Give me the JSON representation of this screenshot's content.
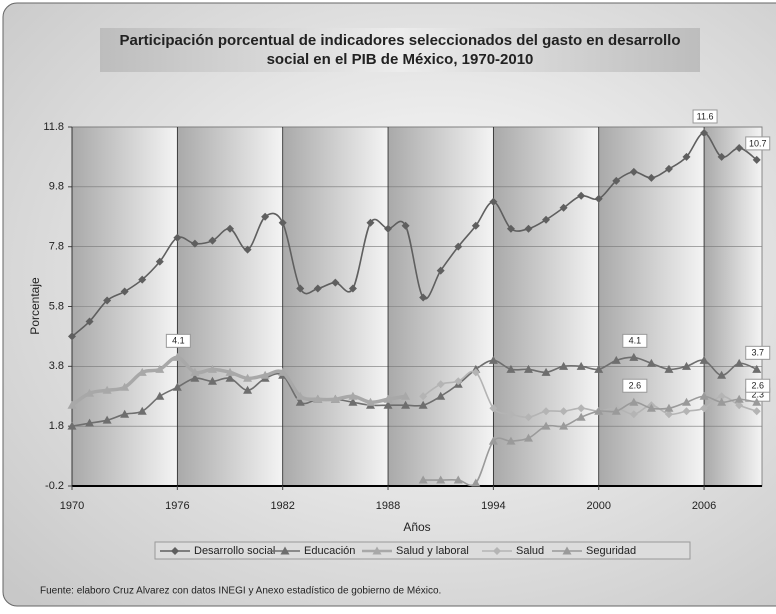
{
  "chart_data": {
    "type": "line",
    "title": "Participación porcentual de indicadores seleccionados del gasto en desarrollo",
    "subtitle": "social en el PIB de México, 1970-2010",
    "xlabel": "Años",
    "ylabel": "Porcentaje",
    "source": "Fuente: elaboro Cruz Alvarez con datos INEGI y Anexo estadístico de gobierno de México.",
    "x": [
      1970,
      1971,
      1972,
      1973,
      1974,
      1975,
      1976,
      1977,
      1978,
      1979,
      1980,
      1981,
      1982,
      1983,
      1984,
      1985,
      1986,
      1987,
      1988,
      1989,
      1990,
      1991,
      1992,
      1993,
      1994,
      1995,
      1996,
      1997,
      1998,
      1999,
      2000,
      2001,
      2002,
      2003,
      2004,
      2005,
      2006,
      2007,
      2008,
      2009
    ],
    "xlim": [
      1970,
      2009.3
    ],
    "xticks": [
      1970,
      1976,
      1982,
      1988,
      1994,
      2000,
      2006
    ],
    "ylim": [
      -0.2,
      11.8
    ],
    "yticks": [
      -0.2,
      1.8,
      3.8,
      5.8,
      7.8,
      9.8,
      11.8
    ],
    "grid": true,
    "legend": "bottom",
    "series": [
      {
        "name": "Desarrollo social",
        "color": "#5f5f5f",
        "marker": "diamond",
        "width": 1.6,
        "labeled": [
          36,
          39
        ],
        "values": [
          4.8,
          5.3,
          6.0,
          6.3,
          6.7,
          7.3,
          8.1,
          7.9,
          8.0,
          8.4,
          7.7,
          8.8,
          8.6,
          6.4,
          6.4,
          6.6,
          6.4,
          8.6,
          8.4,
          8.5,
          6.1,
          7.0,
          7.8,
          8.5,
          9.3,
          8.4,
          8.4,
          8.7,
          9.1,
          9.5,
          9.4,
          10.0,
          10.3,
          10.1,
          10.4,
          10.8,
          11.6,
          10.8,
          11.1,
          10.7
        ]
      },
      {
        "name": "Educación",
        "color": "#6e6e6e",
        "marker": "triangle",
        "width": 1.6,
        "labeled": [
          32,
          39
        ],
        "values": [
          1.8,
          1.9,
          2.0,
          2.2,
          2.3,
          2.8,
          3.1,
          3.4,
          3.3,
          3.4,
          3.0,
          3.4,
          3.5,
          2.6,
          2.7,
          2.7,
          2.6,
          2.5,
          2.5,
          2.5,
          2.5,
          2.8,
          3.2,
          3.7,
          4.0,
          3.7,
          3.7,
          3.6,
          3.8,
          3.8,
          3.7,
          4.0,
          4.1,
          3.9,
          3.7,
          3.8,
          4.0,
          3.5,
          3.9,
          3.7
        ]
      },
      {
        "name": "Salud y laboral",
        "color": "#a8a8a8",
        "marker": "triangle",
        "width": 3.5,
        "labeled": [
          6
        ],
        "values": [
          2.5,
          2.9,
          3.0,
          3.1,
          3.6,
          3.7,
          4.1,
          3.6,
          3.7,
          3.6,
          3.4,
          3.5,
          3.6,
          2.8,
          2.7,
          2.7,
          2.8,
          2.6,
          2.7,
          2.8,
          null,
          null,
          null,
          null,
          null,
          null,
          null,
          null,
          null,
          null,
          null,
          null,
          null,
          null,
          null,
          null,
          null,
          null,
          null,
          null
        ]
      },
      {
        "name": "Salud",
        "color": "#b4b4b4",
        "marker": "diamond",
        "width": 1.6,
        "labeled": [
          39
        ],
        "values": [
          null,
          null,
          null,
          null,
          null,
          null,
          null,
          null,
          null,
          null,
          null,
          null,
          null,
          null,
          null,
          null,
          null,
          null,
          null,
          null,
          2.8,
          3.2,
          3.3,
          3.6,
          2.4,
          2.2,
          2.1,
          2.3,
          2.3,
          2.4,
          2.3,
          2.4,
          2.2,
          2.5,
          2.2,
          2.3,
          2.4,
          2.8,
          2.5,
          2.3
        ]
      },
      {
        "name": "Seguridad",
        "color": "#9a9a9a",
        "marker": "triangle",
        "width": 1.6,
        "labeled": [
          32,
          39
        ],
        "values": [
          null,
          null,
          null,
          null,
          null,
          null,
          null,
          null,
          null,
          null,
          null,
          null,
          null,
          null,
          null,
          null,
          null,
          null,
          null,
          null,
          0.0,
          0.0,
          0.0,
          -0.1,
          1.3,
          1.3,
          1.4,
          1.8,
          1.8,
          2.1,
          2.3,
          2.3,
          2.6,
          2.4,
          2.4,
          2.6,
          2.8,
          2.6,
          2.7,
          2.6
        ]
      }
    ]
  }
}
